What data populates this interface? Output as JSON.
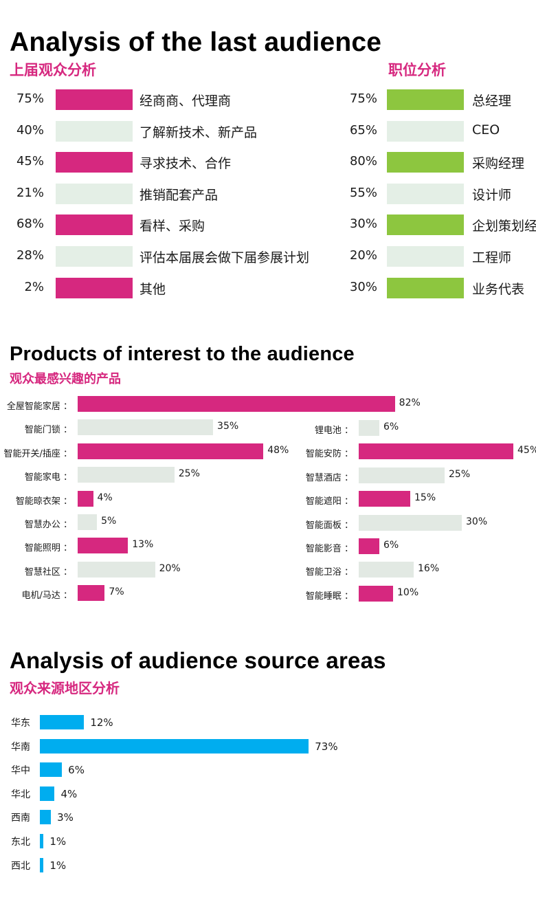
{
  "colors": {
    "magenta": "#d6287f",
    "green": "#8dc63f",
    "pale": "#e4efe6",
    "pale_gray": "#e2e9e3",
    "blue": "#00adef"
  },
  "section1": {
    "title": "Analysis of the last audience",
    "left_subtitle": "上届观众分析",
    "right_subtitle": "职位分析",
    "left_items": [
      {
        "pct": "75%",
        "label": "经商商、代理商",
        "style": "magenta"
      },
      {
        "pct": "40%",
        "label": "了解新技术、新产品",
        "style": "pale"
      },
      {
        "pct": "45%",
        "label": "寻求技术、合作",
        "style": "magenta"
      },
      {
        "pct": "21%",
        "label": "推销配套产品",
        "style": "pale"
      },
      {
        "pct": "68%",
        "label": "看样、采购",
        "style": "magenta"
      },
      {
        "pct": "28%",
        "label": "评估本届展会做下届参展计划",
        "style": "pale"
      },
      {
        "pct": "2%",
        "label": "其他",
        "style": "magenta"
      }
    ],
    "right_items": [
      {
        "pct": "75%",
        "label": "总经理",
        "style": "green"
      },
      {
        "pct": "65%",
        "label": "CEO",
        "style": "pale"
      },
      {
        "pct": "80%",
        "label": "采购经理",
        "style": "green"
      },
      {
        "pct": "55%",
        "label": "设计师",
        "style": "pale"
      },
      {
        "pct": "30%",
        "label": "企划策划经理",
        "style": "green"
      },
      {
        "pct": "20%",
        "label": "工程师",
        "style": "pale"
      },
      {
        "pct": "30%",
        "label": "业务代表",
        "style": "green"
      }
    ]
  },
  "section2": {
    "title": "Products of interest to the audience",
    "subtitle": "观众最感兴趣的产品"
  },
  "section3": {
    "title": "Analysis of audience source areas",
    "subtitle": "观众来源地区分析"
  },
  "chart_data": [
    {
      "type": "bar",
      "orientation": "horizontal",
      "categories": [
        "全屋智能家居",
        "智能门锁",
        "智能开关/插座",
        "智能家电",
        "智能晾衣架",
        "智慧办公",
        "智能照明",
        "智慧社区",
        "电机/马达"
      ],
      "values": [
        82,
        35,
        48,
        25,
        4,
        5,
        13,
        20,
        7
      ],
      "value_labels": [
        "82%",
        "35%",
        "48%",
        "25%",
        "4%",
        "5%",
        "13%",
        "20%",
        "7%"
      ],
      "styles": [
        "magenta",
        "pale_gray",
        "magenta",
        "pale_gray",
        "magenta",
        "pale_gray",
        "magenta",
        "pale_gray",
        "magenta"
      ],
      "label_suffix": "："
    },
    {
      "type": "bar",
      "orientation": "horizontal",
      "categories": [
        "锂电池",
        "智能安防",
        "智慧酒店",
        "智能遮阳",
        "智能面板",
        "智能影音",
        "智能卫浴",
        "智能睡眠"
      ],
      "values": [
        6,
        45,
        25,
        15,
        30,
        6,
        16,
        10
      ],
      "value_labels": [
        "6%",
        "45%",
        "25%",
        "15%",
        "30%",
        "6%",
        "16%",
        "10%"
      ],
      "styles": [
        "pale_gray",
        "magenta",
        "pale_gray",
        "magenta",
        "pale_gray",
        "magenta",
        "pale_gray",
        "magenta"
      ],
      "label_suffix": "："
    },
    {
      "type": "bar",
      "orientation": "horizontal",
      "categories": [
        "华东",
        "华南",
        "华中",
        "华北",
        "西南",
        "东北",
        "西北"
      ],
      "values": [
        12,
        73,
        6,
        4,
        3,
        1,
        1
      ],
      "value_labels": [
        "12%",
        "73%",
        "6%",
        "4%",
        "3%",
        "1%",
        "1%"
      ],
      "color": "#00adef"
    }
  ]
}
